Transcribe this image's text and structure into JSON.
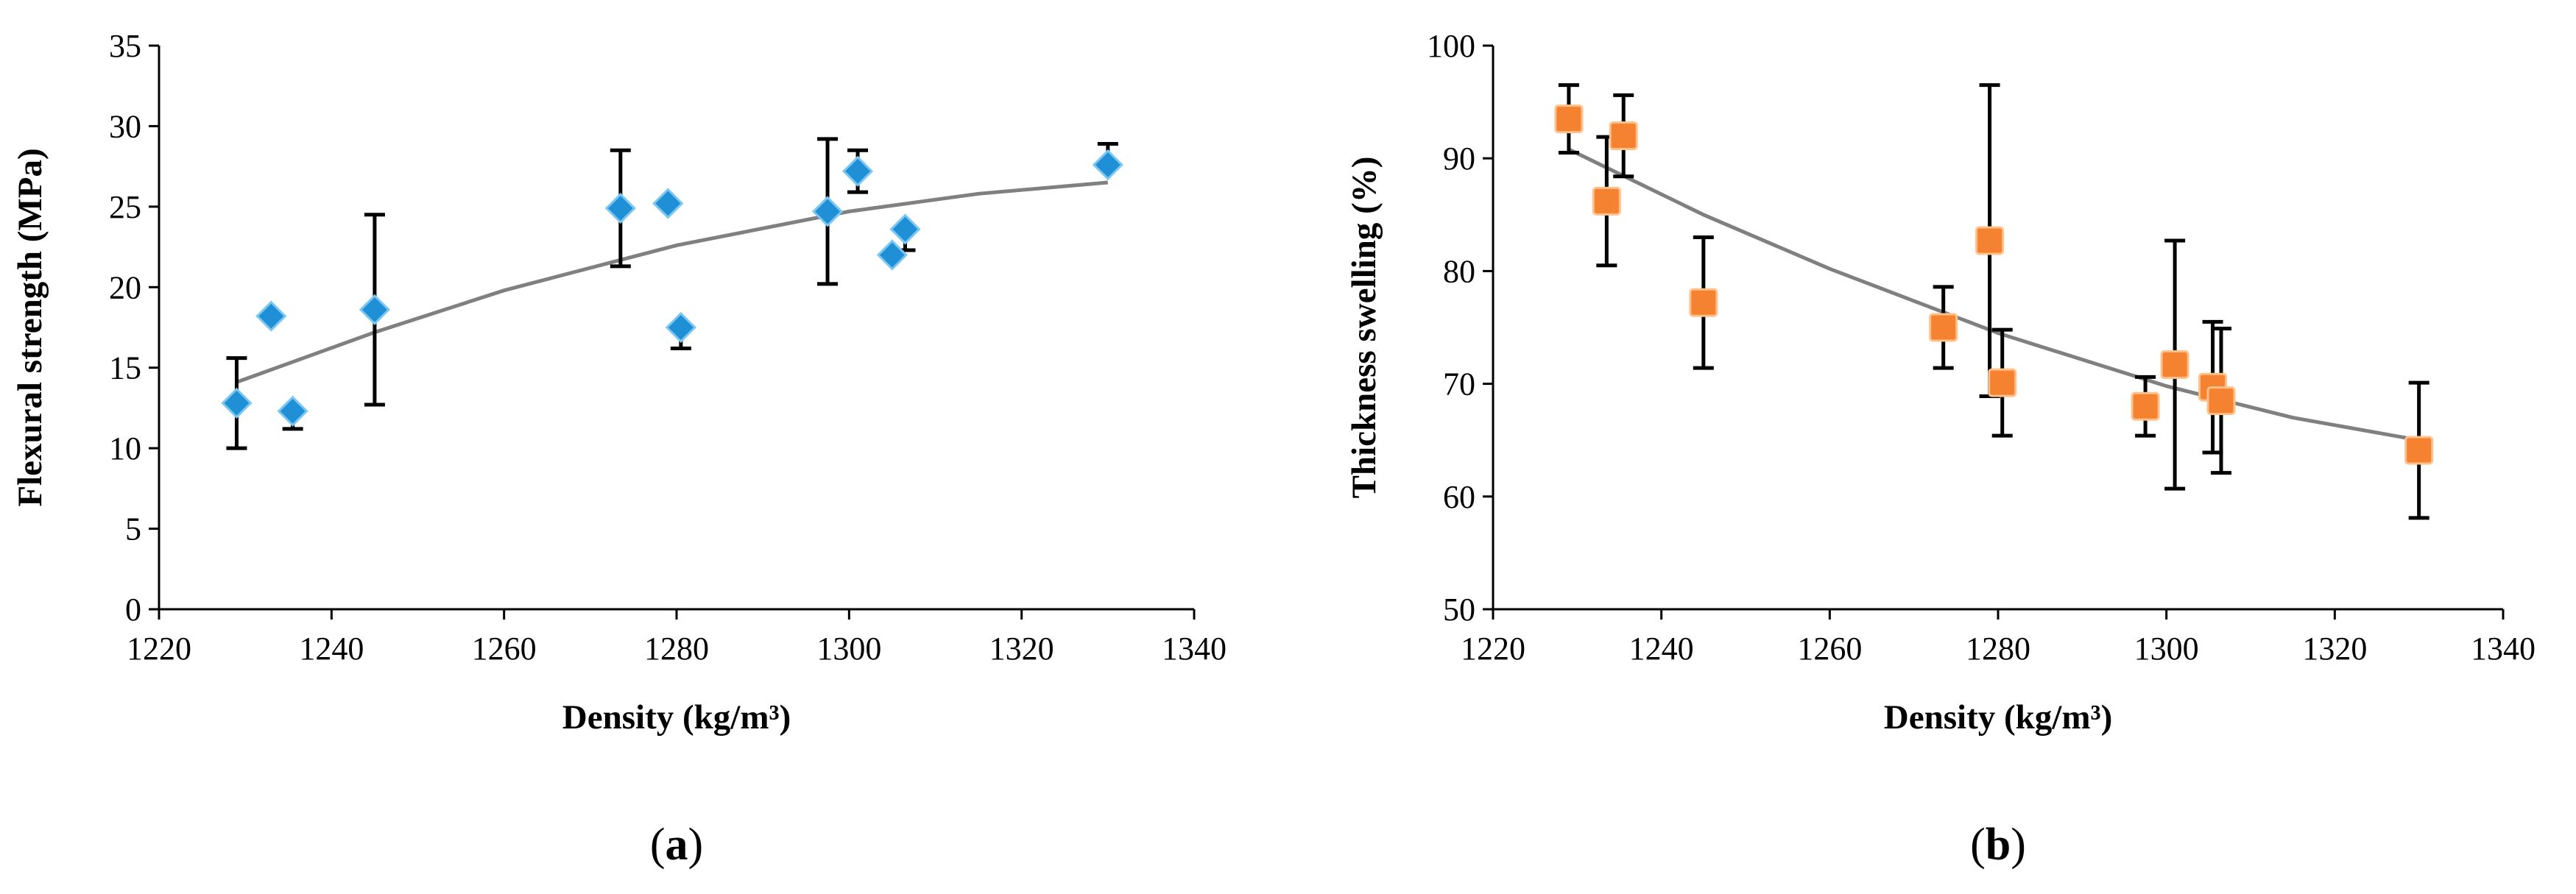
{
  "chart_data": [
    {
      "type": "scatter",
      "panel_label": "(a)",
      "panel_letter": "a",
      "xlabel": "Density (kg/m³)",
      "ylabel": "Flexural strength (MPa)",
      "xlim": [
        1220,
        1340
      ],
      "ylim": [
        0,
        35
      ],
      "xticks": [
        1220,
        1240,
        1260,
        1280,
        1300,
        1320,
        1340
      ],
      "yticks": [
        0,
        5,
        10,
        15,
        20,
        25,
        30,
        35
      ],
      "grid": false,
      "marker": "diamond",
      "marker_color": "#1f8fd6",
      "error_bar_direction": [
        "both",
        "down",
        "down",
        "both",
        "both",
        "up",
        "down",
        "both",
        "both",
        "up",
        "down",
        "up"
      ],
      "points": [
        {
          "x": 1229,
          "y": 12.8,
          "err": 2.8
        },
        {
          "x": 1233,
          "y": 18.2,
          "err": 0
        },
        {
          "x": 1235.5,
          "y": 12.3,
          "err": 1.1
        },
        {
          "x": 1245,
          "y": 18.6,
          "err": 5.9
        },
        {
          "x": 1273.5,
          "y": 24.9,
          "err": 3.6
        },
        {
          "x": 1279,
          "y": 25.2,
          "err": 0
        },
        {
          "x": 1280.5,
          "y": 17.5,
          "err": 1.3
        },
        {
          "x": 1297.5,
          "y": 24.7,
          "err": 4.5
        },
        {
          "x": 1301,
          "y": 27.2,
          "err": 1.3
        },
        {
          "x": 1305,
          "y": 22.0,
          "err": 0
        },
        {
          "x": 1306.5,
          "y": 23.6,
          "err": 1.3
        },
        {
          "x": 1330,
          "y": 27.6,
          "err": 1.3
        }
      ],
      "trendline": {
        "type": "polynomial",
        "x": [
          1229,
          1245,
          1260,
          1280,
          1300,
          1315,
          1330
        ],
        "y": [
          14.1,
          17.2,
          19.8,
          22.6,
          24.7,
          25.8,
          26.5
        ],
        "color": "#808080"
      }
    },
    {
      "type": "scatter",
      "panel_label": "(b)",
      "panel_letter": "b",
      "xlabel": "Density (kg/m³)",
      "ylabel": "Thickness swelling (%)",
      "xlim": [
        1220,
        1340
      ],
      "ylim": [
        50,
        100
      ],
      "xticks": [
        1220,
        1240,
        1260,
        1280,
        1300,
        1320,
        1340
      ],
      "yticks": [
        50,
        60,
        70,
        80,
        90,
        100
      ],
      "grid": false,
      "marker": "square",
      "marker_color": "#f58231",
      "points": [
        {
          "x": 1229,
          "y": 93.5,
          "err": 3.0
        },
        {
          "x": 1233.5,
          "y": 86.2,
          "err": 5.7
        },
        {
          "x": 1235.5,
          "y": 92.0,
          "err": 3.6
        },
        {
          "x": 1245,
          "y": 77.2,
          "err": 5.8
        },
        {
          "x": 1273.5,
          "y": 75.0,
          "err": 3.6
        },
        {
          "x": 1279,
          "y": 82.7,
          "err": 13.8
        },
        {
          "x": 1280.5,
          "y": 70.1,
          "err": 4.7
        },
        {
          "x": 1297.5,
          "y": 68.0,
          "err": 2.6
        },
        {
          "x": 1301,
          "y": 71.7,
          "err": 11.0
        },
        {
          "x": 1305.5,
          "y": 69.7,
          "err": 5.8
        },
        {
          "x": 1306.5,
          "y": 68.5,
          "err": 6.4
        },
        {
          "x": 1330,
          "y": 64.1,
          "err": 6.0
        }
      ],
      "trendline": {
        "type": "polynomial",
        "x": [
          1229,
          1245,
          1260,
          1280,
          1300,
          1315,
          1330
        ],
        "y": [
          90.8,
          85.0,
          80.2,
          74.5,
          69.8,
          67.0,
          65.0
        ],
        "color": "#808080"
      }
    }
  ]
}
